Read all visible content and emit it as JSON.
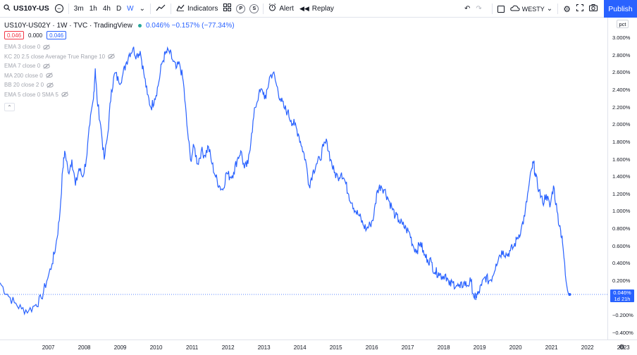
{
  "toolbar": {
    "symbol": "US10Y-US",
    "intervals": [
      "3m",
      "1h",
      "4h",
      "D",
      "W"
    ],
    "active_interval": "W",
    "indicators_label": "Indicators",
    "alert_label": "Alert",
    "replay_label": "Replay",
    "layout_name": "WESTY",
    "publish_label": "Publish",
    "circle_p": "P",
    "circle_s": "S"
  },
  "legend": {
    "title": "US10Y-US02Y · 1W · TVC · TradingView",
    "values": "0.046%  −0.157% (−77.34%)",
    "box_red": "0.046",
    "box_gray": "0.000",
    "box_blue": "0.046"
  },
  "indicators": [
    "EMA 3 close 0",
    "KC 20 2.5 close Average True Range 10",
    "EMA 7 close 0",
    "MA 200 close 0",
    "BB 20 close 2 0",
    "EMA 5 close 0 SMA 5"
  ],
  "axis": {
    "unit_badge": "pct",
    "y_ticks": [
      "3.000%",
      "2.800%",
      "2.600%",
      "2.400%",
      "2.200%",
      "2.000%",
      "1.800%",
      "1.600%",
      "1.400%",
      "1.200%",
      "1.000%",
      "0.800%",
      "0.600%",
      "0.400%",
      "0.200%",
      "0.000%",
      "−0.200%",
      "−0.400%"
    ],
    "x_ticks": [
      "2007",
      "2008",
      "2009",
      "2010",
      "2011",
      "2012",
      "2013",
      "2014",
      "2015",
      "2016",
      "2017",
      "2018",
      "2019",
      "2020",
      "2021",
      "2022",
      "2023"
    ],
    "last_value_flag": "0.046%",
    "last_value_countdown": "1d 21h"
  },
  "chart_data": {
    "type": "line",
    "series": [
      {
        "values": [
          [
            2006.4,
            0.18
          ],
          [
            2006.6,
            0.05
          ],
          [
            2006.8,
            -0.05
          ],
          [
            2007.0,
            -0.12
          ],
          [
            2007.2,
            -0.14
          ],
          [
            2007.4,
            -0.07
          ],
          [
            2007.55,
            0.0
          ],
          [
            2007.7,
            0.2
          ],
          [
            2007.85,
            0.4
          ],
          [
            2007.95,
            0.6
          ],
          [
            2008.05,
            0.9
          ],
          [
            2008.15,
            1.5
          ],
          [
            2008.2,
            1.7
          ],
          [
            2008.3,
            1.45
          ],
          [
            2008.4,
            1.6
          ],
          [
            2008.5,
            1.3
          ],
          [
            2008.6,
            1.5
          ],
          [
            2008.7,
            1.4
          ],
          [
            2008.8,
            1.6
          ],
          [
            2008.9,
            2.0
          ],
          [
            2009.0,
            2.3
          ],
          [
            2009.05,
            2.65
          ],
          [
            2009.1,
            2.3
          ],
          [
            2009.2,
            2.0
          ],
          [
            2009.3,
            1.6
          ],
          [
            2009.4,
            1.9
          ],
          [
            2009.5,
            2.4
          ],
          [
            2009.6,
            2.6
          ],
          [
            2009.7,
            2.5
          ],
          [
            2009.8,
            2.55
          ],
          [
            2009.9,
            2.7
          ],
          [
            2010.0,
            2.82
          ],
          [
            2010.1,
            2.88
          ],
          [
            2010.2,
            2.8
          ],
          [
            2010.3,
            2.85
          ],
          [
            2010.4,
            2.6
          ],
          [
            2010.5,
            2.35
          ],
          [
            2010.6,
            2.2
          ],
          [
            2010.7,
            2.3
          ],
          [
            2010.8,
            2.45
          ],
          [
            2010.9,
            2.7
          ],
          [
            2011.0,
            2.82
          ],
          [
            2011.1,
            2.85
          ],
          [
            2011.2,
            2.75
          ],
          [
            2011.3,
            2.65
          ],
          [
            2011.4,
            2.7
          ],
          [
            2011.5,
            2.5
          ],
          [
            2011.6,
            2.0
          ],
          [
            2011.7,
            1.6
          ],
          [
            2011.8,
            1.75
          ],
          [
            2011.9,
            1.55
          ],
          [
            2012.0,
            1.7
          ],
          [
            2012.1,
            1.65
          ],
          [
            2012.2,
            1.75
          ],
          [
            2012.3,
            1.55
          ],
          [
            2012.4,
            1.4
          ],
          [
            2012.5,
            1.3
          ],
          [
            2012.6,
            1.25
          ],
          [
            2012.7,
            1.45
          ],
          [
            2012.8,
            1.4
          ],
          [
            2012.9,
            1.45
          ],
          [
            2013.0,
            1.6
          ],
          [
            2013.1,
            1.7
          ],
          [
            2013.2,
            1.5
          ],
          [
            2013.3,
            1.55
          ],
          [
            2013.4,
            1.9
          ],
          [
            2013.5,
            2.2
          ],
          [
            2013.6,
            2.35
          ],
          [
            2013.7,
            2.4
          ],
          [
            2013.8,
            2.3
          ],
          [
            2013.9,
            2.55
          ],
          [
            2014.0,
            2.6
          ],
          [
            2014.1,
            2.45
          ],
          [
            2014.2,
            2.3
          ],
          [
            2014.3,
            2.2
          ],
          [
            2014.4,
            2.15
          ],
          [
            2014.5,
            2.05
          ],
          [
            2014.6,
            2.0
          ],
          [
            2014.7,
            1.9
          ],
          [
            2014.8,
            1.75
          ],
          [
            2014.9,
            1.6
          ],
          [
            2015.0,
            1.3
          ],
          [
            2015.1,
            1.45
          ],
          [
            2015.2,
            1.55
          ],
          [
            2015.3,
            1.6
          ],
          [
            2015.4,
            1.75
          ],
          [
            2015.5,
            1.8
          ],
          [
            2015.6,
            1.6
          ],
          [
            2015.7,
            1.45
          ],
          [
            2015.8,
            1.4
          ],
          [
            2015.9,
            1.45
          ],
          [
            2016.0,
            1.35
          ],
          [
            2016.1,
            1.2
          ],
          [
            2016.2,
            1.1
          ],
          [
            2016.3,
            1.0
          ],
          [
            2016.4,
            0.95
          ],
          [
            2016.5,
            0.85
          ],
          [
            2016.6,
            0.8
          ],
          [
            2016.7,
            0.85
          ],
          [
            2016.8,
            0.95
          ],
          [
            2016.9,
            1.25
          ],
          [
            2017.0,
            1.3
          ],
          [
            2017.1,
            1.25
          ],
          [
            2017.2,
            1.15
          ],
          [
            2017.3,
            1.05
          ],
          [
            2017.4,
            0.95
          ],
          [
            2017.5,
            0.9
          ],
          [
            2017.6,
            0.85
          ],
          [
            2017.7,
            0.8
          ],
          [
            2017.8,
            0.75
          ],
          [
            2017.9,
            0.6
          ],
          [
            2018.0,
            0.55
          ],
          [
            2018.1,
            0.65
          ],
          [
            2018.2,
            0.5
          ],
          [
            2018.3,
            0.45
          ],
          [
            2018.4,
            0.42
          ],
          [
            2018.5,
            0.3
          ],
          [
            2018.6,
            0.3
          ],
          [
            2018.7,
            0.25
          ],
          [
            2018.8,
            0.28
          ],
          [
            2018.9,
            0.15
          ],
          [
            2019.0,
            0.18
          ],
          [
            2019.1,
            0.15
          ],
          [
            2019.2,
            0.12
          ],
          [
            2019.3,
            0.18
          ],
          [
            2019.4,
            0.15
          ],
          [
            2019.5,
            0.2
          ],
          [
            2019.6,
            0.0
          ],
          [
            2019.65,
            0.02
          ],
          [
            2019.7,
            0.05
          ],
          [
            2019.8,
            0.15
          ],
          [
            2019.9,
            0.25
          ],
          [
            2020.0,
            0.2
          ],
          [
            2020.1,
            0.25
          ],
          [
            2020.2,
            0.4
          ],
          [
            2020.3,
            0.5
          ],
          [
            2020.4,
            0.55
          ],
          [
            2020.5,
            0.5
          ],
          [
            2020.6,
            0.55
          ],
          [
            2020.7,
            0.6
          ],
          [
            2020.8,
            0.7
          ],
          [
            2020.9,
            0.8
          ],
          [
            2021.0,
            0.95
          ],
          [
            2021.1,
            1.25
          ],
          [
            2021.2,
            1.5
          ],
          [
            2021.25,
            1.56
          ],
          [
            2021.3,
            1.4
          ],
          [
            2021.4,
            1.25
          ],
          [
            2021.5,
            1.1
          ],
          [
            2021.6,
            1.2
          ],
          [
            2021.7,
            1.05
          ],
          [
            2021.8,
            1.3
          ],
          [
            2021.9,
            1.0
          ],
          [
            2022.0,
            0.78
          ],
          [
            2022.05,
            0.65
          ],
          [
            2022.15,
            0.2
          ],
          [
            2022.25,
            0.046
          ]
        ]
      }
    ],
    "ylim": [
      -0.4,
      3.0
    ],
    "xlim": [
      2006.4,
      2023.3
    ],
    "grid": false
  }
}
